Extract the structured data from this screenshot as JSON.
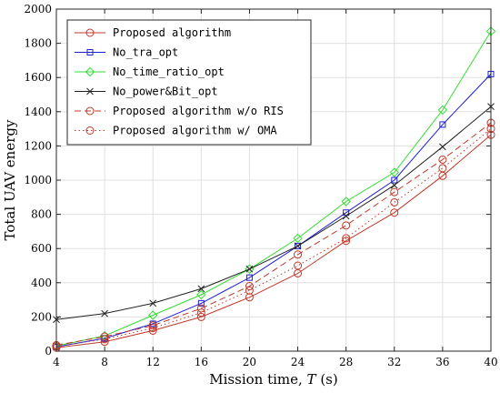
{
  "chart_data": {
    "type": "line",
    "title": "",
    "xlabel": "Mission time, T (s)",
    "xlabel_parts": {
      "prefix": "Mission time, ",
      "var": "T",
      "suffix": " (s)"
    },
    "ylabel": "Total UAV energy",
    "x": [
      4,
      8,
      12,
      16,
      20,
      24,
      28,
      32,
      36,
      40
    ],
    "xlim": [
      4,
      40
    ],
    "ylim": [
      0,
      2000
    ],
    "xticks": [
      4,
      8,
      12,
      16,
      20,
      24,
      28,
      32,
      36,
      40
    ],
    "yticks": [
      0,
      200,
      400,
      600,
      800,
      1000,
      1200,
      1400,
      1600,
      1800,
      2000
    ],
    "grid": true,
    "legend_position": "top-left",
    "series": [
      {
        "name": "Proposed algorithm",
        "color": "#c0392b",
        "marker": "circle",
        "dash": "solid",
        "values": [
          20,
          55,
          120,
          200,
          315,
          455,
          645,
          810,
          1025,
          1265
        ]
      },
      {
        "name": "No_tra_opt",
        "color": "#1f1fd6",
        "marker": "square",
        "dash": "solid",
        "values": [
          25,
          75,
          160,
          280,
          430,
          615,
          810,
          1000,
          1325,
          1620
        ]
      },
      {
        "name": "No_time_ratio_opt",
        "color": "#33dd33",
        "marker": "diamond",
        "dash": "solid",
        "values": [
          30,
          90,
          210,
          330,
          480,
          660,
          875,
          1045,
          1410,
          1870
        ]
      },
      {
        "name": "No_power&Bit_opt",
        "color": "#222222",
        "marker": "x",
        "dash": "solid",
        "values": [
          185,
          220,
          280,
          365,
          480,
          615,
          790,
          970,
          1195,
          1430
        ]
      },
      {
        "name": "Proposed algorithm w/o RIS",
        "color": "#c0392b",
        "marker": "circle",
        "dash": "dashed",
        "values": [
          35,
          85,
          150,
          250,
          380,
          565,
          735,
          930,
          1120,
          1335
        ]
      },
      {
        "name": "Proposed algorithm w/ OMA",
        "color": "#c0392b",
        "marker": "circle",
        "dash": "dotted",
        "values": [
          28,
          70,
          135,
          225,
          355,
          500,
          660,
          870,
          1070,
          1300
        ]
      }
    ]
  }
}
